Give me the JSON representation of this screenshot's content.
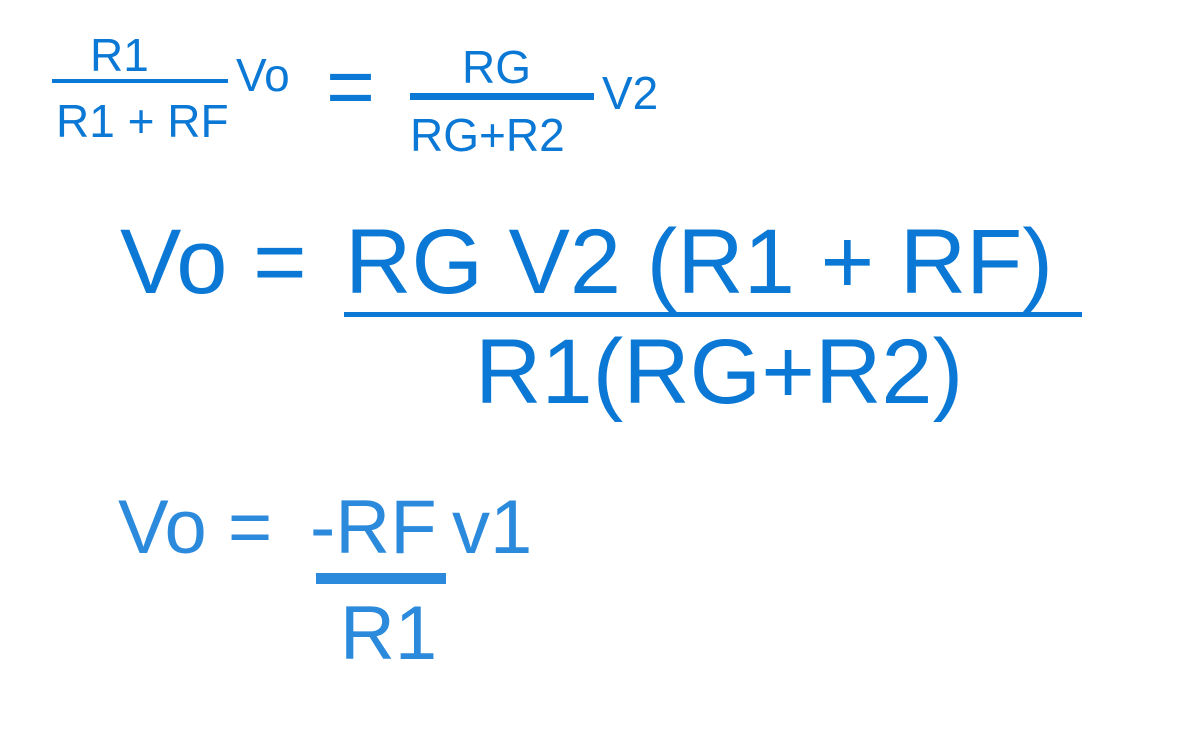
{
  "colors": {
    "primary": "#0A78D4",
    "secondary": "#2C8ADC"
  },
  "equation1": {
    "left_numerator": "R1",
    "left_denominator": "R1 + RF",
    "left_factor": "Vo",
    "equals": "=",
    "right_numerator": "RG",
    "right_denominator": "RG+R2",
    "right_factor": "V2"
  },
  "equation2": {
    "lhs": "Vo =",
    "numerator": "RG V2 (R1 + RF)",
    "denominator": "R1(RG+R2)"
  },
  "equation3": {
    "lhs": "Vo =",
    "numerator": "-RF",
    "factor": "v1",
    "denominator": "R1"
  }
}
